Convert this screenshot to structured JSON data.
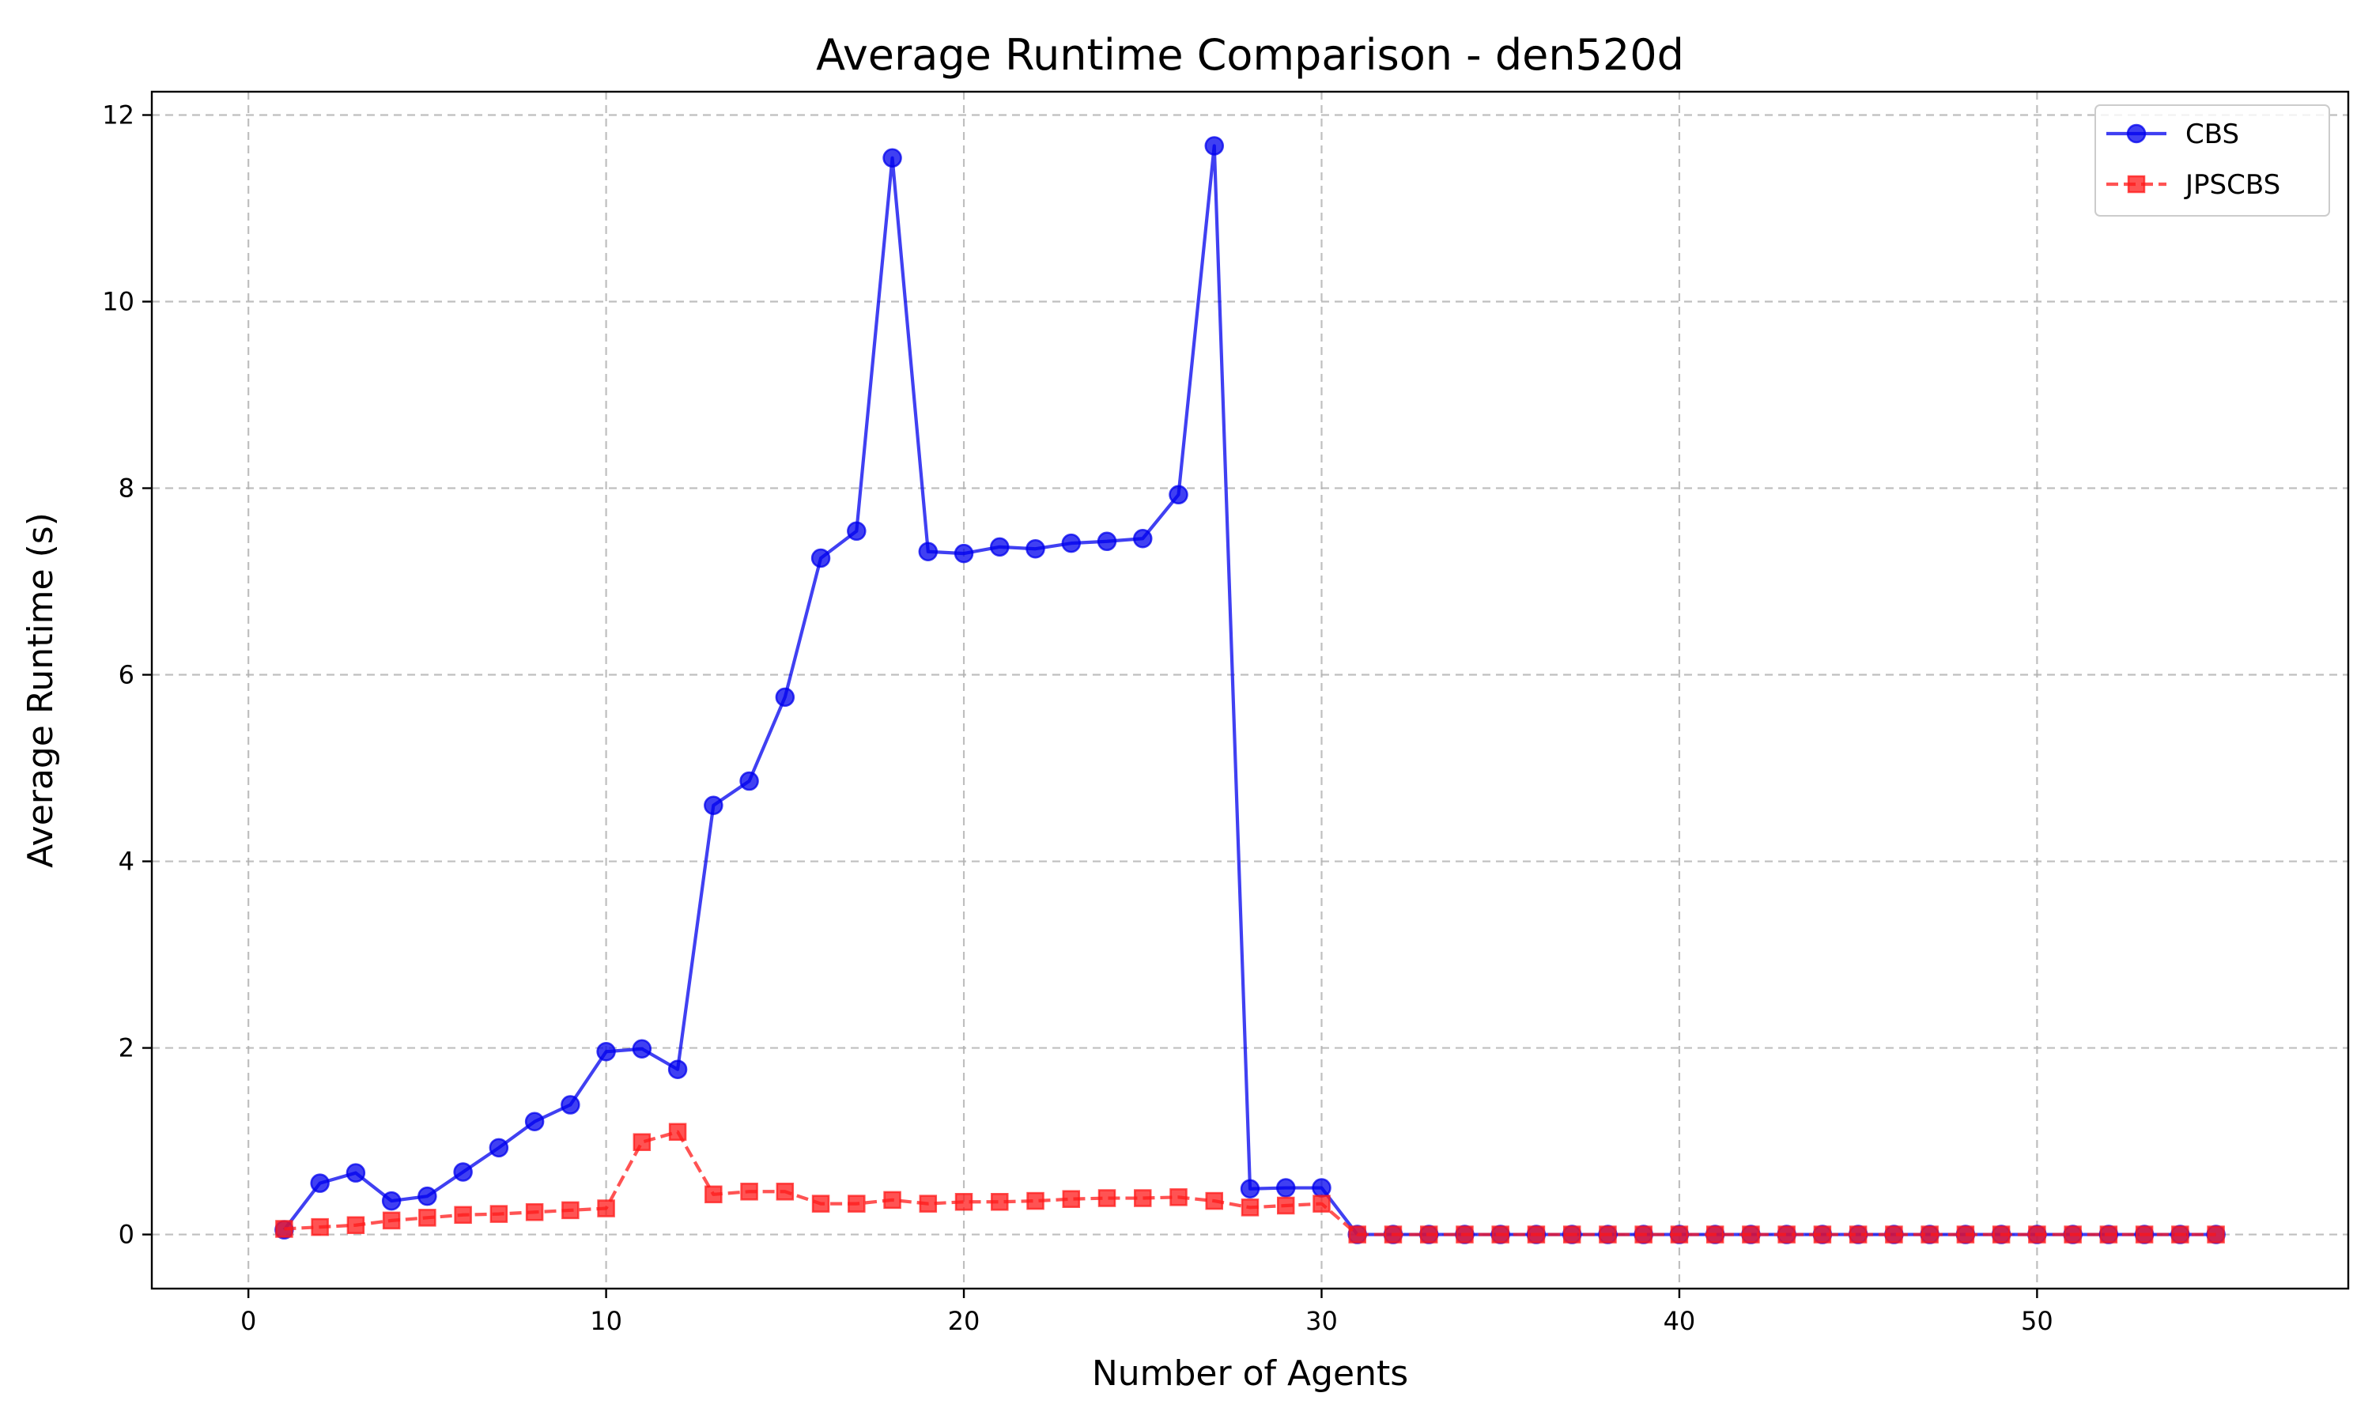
{
  "chart_data": {
    "type": "line",
    "title": "Average Runtime Comparison - den520d",
    "xlabel": "Number of Agents",
    "ylabel": "Average Runtime (s)",
    "xlim": [
      -2.7,
      58.7
    ],
    "ylim": [
      -0.58,
      12.25
    ],
    "xticks": [
      0,
      10,
      20,
      30,
      40,
      50
    ],
    "yticks": [
      0,
      2,
      4,
      6,
      8,
      10,
      12
    ],
    "grid": true,
    "legend_position": "top-right",
    "x": [
      1,
      2,
      3,
      4,
      5,
      6,
      7,
      8,
      9,
      10,
      11,
      12,
      13,
      14,
      15,
      16,
      17,
      18,
      19,
      20,
      21,
      22,
      23,
      24,
      25,
      26,
      27,
      28,
      29,
      30,
      31,
      32,
      33,
      34,
      35,
      36,
      37,
      38,
      39,
      40,
      41,
      42,
      43,
      44,
      45,
      46,
      47,
      48,
      49,
      50,
      51,
      52,
      53,
      54,
      55
    ],
    "series": [
      {
        "name": "CBS",
        "color": "#0000ee",
        "line_style": "solid",
        "marker": "circle",
        "values": [
          0.05,
          0.55,
          0.66,
          0.36,
          0.41,
          0.67,
          0.93,
          1.21,
          1.39,
          1.96,
          1.99,
          1.77,
          4.6,
          4.86,
          5.76,
          7.25,
          7.54,
          11.54,
          7.32,
          7.3,
          7.37,
          7.35,
          7.41,
          7.43,
          7.46,
          7.93,
          11.67,
          0.49,
          0.5,
          0.5,
          0,
          0,
          0,
          0,
          0,
          0,
          0,
          0,
          0,
          0,
          0,
          0,
          0,
          0,
          0,
          0,
          0,
          0,
          0,
          0,
          0,
          0,
          0,
          0,
          0
        ]
      },
      {
        "name": "JPSCBS",
        "color": "#ff1a1a",
        "line_style": "dashed",
        "marker": "square",
        "values": [
          0.06,
          0.08,
          0.1,
          0.15,
          0.18,
          0.21,
          0.22,
          0.24,
          0.26,
          0.28,
          0.99,
          1.1,
          0.43,
          0.46,
          0.46,
          0.33,
          0.33,
          0.37,
          0.33,
          0.35,
          0.35,
          0.36,
          0.38,
          0.39,
          0.39,
          0.4,
          0.36,
          0.29,
          0.31,
          0.33,
          0,
          0,
          0,
          0,
          0,
          0,
          0,
          0,
          0,
          0,
          0,
          0,
          0,
          0,
          0,
          0,
          0,
          0,
          0,
          0,
          0,
          0,
          0,
          0,
          0
        ]
      }
    ]
  }
}
